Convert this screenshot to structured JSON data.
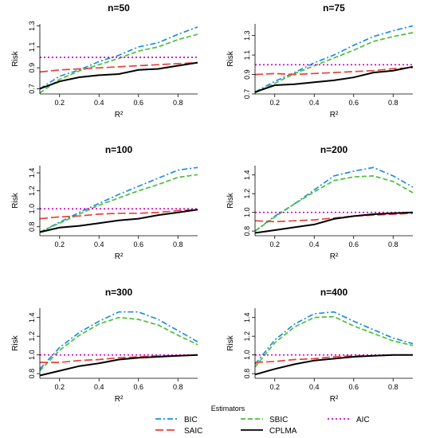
{
  "legend": {
    "title": "Estimators",
    "entries": [
      {
        "name": "BIC",
        "color": "#1f8fe0",
        "dash": "dashdot"
      },
      {
        "name": "SBIC",
        "color": "#4dbf3a",
        "dash": "dashed"
      },
      {
        "name": "AIC",
        "color": "#cc00cc",
        "dash": "dotted"
      },
      {
        "name": "SAIC",
        "color": "#e8413c",
        "dash": "longdash"
      },
      {
        "name": "CPLMA",
        "color": "#000000",
        "dash": "solid"
      }
    ]
  },
  "chart_data": [
    {
      "type": "line",
      "title": "n=50",
      "xlabel": "R²",
      "ylabel": "Risk",
      "x": [
        0.1,
        0.2,
        0.3,
        0.4,
        0.5,
        0.6,
        0.7,
        0.8,
        0.9
      ],
      "xticks": [
        "0.2",
        "0.4",
        "0.6",
        "0.8"
      ],
      "xlim": [
        0.1,
        0.9
      ],
      "ylim": [
        0.65,
        1.32
      ],
      "yticks": [
        "0.7",
        "0.9",
        "1.1",
        "1.3"
      ],
      "series": [
        {
          "name": "BIC",
          "values": [
            0.7,
            0.82,
            0.88,
            0.96,
            1.02,
            1.1,
            1.14,
            1.22,
            1.29
          ]
        },
        {
          "name": "SBIC",
          "values": [
            0.66,
            0.79,
            0.87,
            0.93,
            0.99,
            1.06,
            1.1,
            1.17,
            1.22
          ]
        },
        {
          "name": "AIC",
          "values": [
            1.0,
            1.0,
            1.0,
            1.0,
            1.0,
            1.0,
            1.0,
            1.0,
            1.0
          ]
        },
        {
          "name": "SAIC",
          "values": [
            0.86,
            0.88,
            0.89,
            0.9,
            0.91,
            0.92,
            0.93,
            0.94,
            0.95
          ]
        },
        {
          "name": "CPLMA",
          "values": [
            0.7,
            0.77,
            0.81,
            0.83,
            0.84,
            0.88,
            0.89,
            0.92,
            0.95
          ]
        }
      ]
    },
    {
      "type": "line",
      "title": "n=75",
      "xlabel": "R²",
      "ylabel": "Risk",
      "x": [
        0.1,
        0.2,
        0.3,
        0.4,
        0.5,
        0.6,
        0.7,
        0.8,
        0.9
      ],
      "xticks": [
        "0.2",
        "0.4",
        "0.6",
        "0.8"
      ],
      "xlim": [
        0.1,
        0.9
      ],
      "ylim": [
        0.7,
        1.42
      ],
      "yticks": [
        "0.7",
        "0.9",
        "1.1",
        "1.3"
      ],
      "series": [
        {
          "name": "BIC",
          "values": [
            0.72,
            0.83,
            0.92,
            1.02,
            1.1,
            1.2,
            1.29,
            1.35,
            1.4
          ]
        },
        {
          "name": "SBIC",
          "values": [
            0.71,
            0.81,
            0.91,
            0.99,
            1.07,
            1.15,
            1.24,
            1.29,
            1.33
          ]
        },
        {
          "name": "AIC",
          "values": [
            1.0,
            1.0,
            1.0,
            1.0,
            1.0,
            1.0,
            1.0,
            1.0,
            1.0
          ]
        },
        {
          "name": "SAIC",
          "values": [
            0.9,
            0.91,
            0.9,
            0.91,
            0.92,
            0.93,
            0.94,
            0.96,
            0.97
          ]
        },
        {
          "name": "CPLMA",
          "values": [
            0.72,
            0.79,
            0.8,
            0.82,
            0.84,
            0.87,
            0.92,
            0.94,
            0.98
          ]
        }
      ]
    },
    {
      "type": "line",
      "title": "n=100",
      "xlabel": "R²",
      "ylabel": "Risk",
      "x": [
        0.1,
        0.2,
        0.3,
        0.4,
        0.5,
        0.6,
        0.7,
        0.8,
        0.9
      ],
      "xticks": [
        "0.2",
        "0.4",
        "0.6",
        "0.8"
      ],
      "xlim": [
        0.1,
        0.9
      ],
      "ylim": [
        0.7,
        1.48
      ],
      "yticks": [
        "0.8",
        "1.0",
        "1.2",
        "1.4"
      ],
      "series": [
        {
          "name": "BIC",
          "values": [
            0.74,
            0.85,
            0.96,
            1.06,
            1.16,
            1.25,
            1.34,
            1.43,
            1.46
          ]
        },
        {
          "name": "SBIC",
          "values": [
            0.74,
            0.84,
            0.94,
            1.04,
            1.12,
            1.2,
            1.27,
            1.35,
            1.38
          ]
        },
        {
          "name": "AIC",
          "values": [
            1.0,
            1.0,
            1.0,
            1.0,
            1.0,
            1.0,
            1.0,
            1.0,
            1.0
          ]
        },
        {
          "name": "SAIC",
          "values": [
            0.89,
            0.91,
            0.92,
            0.94,
            0.95,
            0.95,
            0.96,
            0.98,
            0.99
          ]
        },
        {
          "name": "CPLMA",
          "values": [
            0.74,
            0.79,
            0.81,
            0.84,
            0.87,
            0.89,
            0.93,
            0.96,
            0.99
          ]
        }
      ]
    },
    {
      "type": "line",
      "title": "n=200",
      "xlabel": "R²",
      "ylabel": "Risk",
      "x": [
        0.1,
        0.2,
        0.3,
        0.4,
        0.5,
        0.6,
        0.7,
        0.8,
        0.9
      ],
      "xticks": [
        "0.2",
        "0.4",
        "0.6",
        "0.8"
      ],
      "xlim": [
        0.1,
        0.9
      ],
      "ylim": [
        0.75,
        1.5
      ],
      "yticks": [
        "0.8",
        "1.0",
        "1.2",
        "1.4"
      ],
      "series": [
        {
          "name": "BIC",
          "values": [
            0.8,
            0.96,
            1.09,
            1.24,
            1.39,
            1.44,
            1.48,
            1.39,
            1.27
          ]
        },
        {
          "name": "SBIC",
          "values": [
            0.8,
            0.95,
            1.09,
            1.22,
            1.34,
            1.38,
            1.39,
            1.33,
            1.21
          ]
        },
        {
          "name": "AIC",
          "values": [
            1.0,
            1.0,
            1.0,
            1.0,
            1.0,
            1.0,
            1.0,
            1.0,
            1.0
          ]
        },
        {
          "name": "SAIC",
          "values": [
            0.91,
            0.9,
            0.91,
            0.92,
            0.94,
            0.96,
            0.97,
            0.98,
            0.99
          ]
        },
        {
          "name": "CPLMA",
          "values": [
            0.78,
            0.81,
            0.84,
            0.87,
            0.93,
            0.96,
            0.98,
            0.99,
            1.0
          ]
        }
      ]
    },
    {
      "type": "line",
      "title": "n=300",
      "xlabel": "R²",
      "ylabel": "Risk",
      "x": [
        0.1,
        0.2,
        0.3,
        0.4,
        0.5,
        0.6,
        0.7,
        0.8,
        0.9
      ],
      "xticks": [
        "0.2",
        "0.4",
        "0.6",
        "0.8"
      ],
      "xlim": [
        0.1,
        0.9
      ],
      "ylim": [
        0.75,
        1.5
      ],
      "yticks": [
        "0.8",
        "1.0",
        "1.2",
        "1.4"
      ],
      "series": [
        {
          "name": "BIC",
          "values": [
            0.85,
            1.08,
            1.24,
            1.36,
            1.46,
            1.46,
            1.38,
            1.26,
            1.14
          ]
        },
        {
          "name": "SBIC",
          "values": [
            0.83,
            1.05,
            1.21,
            1.33,
            1.4,
            1.38,
            1.32,
            1.21,
            1.11
          ]
        },
        {
          "name": "AIC",
          "values": [
            1.0,
            1.0,
            1.0,
            1.0,
            1.0,
            1.0,
            1.0,
            1.0,
            1.0
          ]
        },
        {
          "name": "SAIC",
          "values": [
            0.92,
            0.92,
            0.94,
            0.95,
            0.97,
            0.98,
            0.99,
            0.99,
            1.0
          ]
        },
        {
          "name": "CPLMA",
          "values": [
            0.78,
            0.83,
            0.88,
            0.91,
            0.95,
            0.97,
            0.98,
            0.99,
            1.0
          ]
        }
      ]
    },
    {
      "type": "line",
      "title": "n=400",
      "xlabel": "R²",
      "ylabel": "Risk",
      "x": [
        0.1,
        0.2,
        0.3,
        0.4,
        0.5,
        0.6,
        0.7,
        0.8,
        0.9
      ],
      "xticks": [
        "0.2",
        "0.4",
        "0.6",
        "0.8"
      ],
      "xlim": [
        0.1,
        0.9
      ],
      "ylim": [
        0.75,
        1.5
      ],
      "yticks": [
        "0.8",
        "1.0",
        "1.2",
        "1.4"
      ],
      "series": [
        {
          "name": "BIC",
          "values": [
            0.9,
            1.16,
            1.33,
            1.44,
            1.46,
            1.36,
            1.27,
            1.18,
            1.12
          ]
        },
        {
          "name": "SBIC",
          "values": [
            0.87,
            1.13,
            1.3,
            1.4,
            1.41,
            1.31,
            1.23,
            1.15,
            1.1
          ]
        },
        {
          "name": "AIC",
          "values": [
            1.0,
            1.0,
            1.0,
            1.0,
            1.0,
            1.0,
            1.0,
            1.0,
            1.0
          ]
        },
        {
          "name": "SAIC",
          "values": [
            0.92,
            0.93,
            0.95,
            0.96,
            0.98,
            0.99,
            0.99,
            1.0,
            1.0
          ]
        },
        {
          "name": "CPLMA",
          "values": [
            0.79,
            0.85,
            0.9,
            0.94,
            0.96,
            0.98,
            0.99,
            1.0,
            1.0
          ]
        }
      ]
    }
  ]
}
